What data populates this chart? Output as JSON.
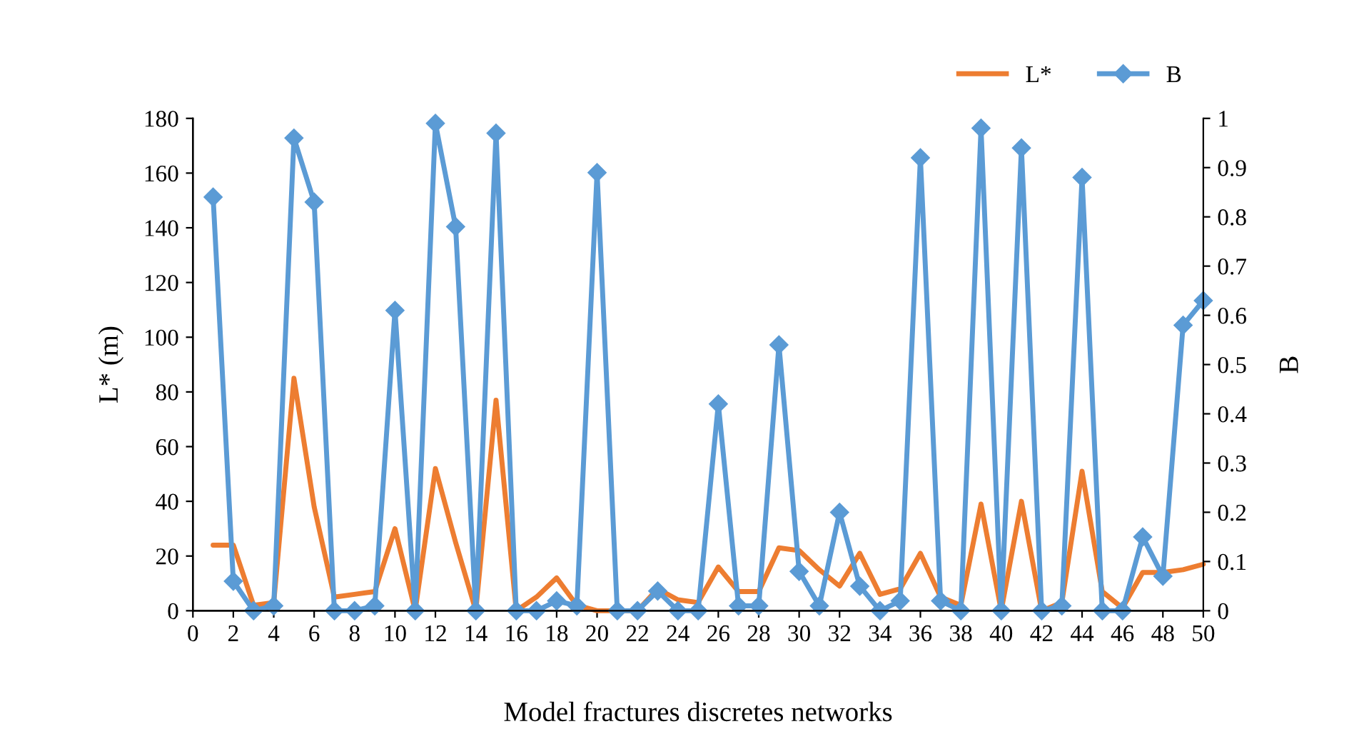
{
  "chart_data": {
    "type": "line",
    "xlabel": "Model fractures discretes networks",
    "ylabel": "L* (m)",
    "y2label": "B",
    "x": [
      1,
      2,
      3,
      4,
      5,
      6,
      7,
      8,
      9,
      10,
      11,
      12,
      13,
      14,
      15,
      16,
      17,
      18,
      19,
      20,
      21,
      22,
      23,
      24,
      25,
      26,
      27,
      28,
      29,
      30,
      31,
      32,
      33,
      34,
      35,
      36,
      37,
      38,
      39,
      40,
      41,
      42,
      43,
      44,
      45,
      46,
      47,
      48,
      49,
      50
    ],
    "series": [
      {
        "name": "L*",
        "color": "#ed7d31",
        "marker": "none",
        "values": [
          24,
          24,
          2,
          3,
          85,
          38,
          5,
          6,
          7,
          30,
          0,
          52,
          25,
          0,
          77,
          0,
          5,
          12,
          2,
          0,
          0,
          0,
          8,
          4,
          3,
          16,
          7,
          7,
          23,
          22,
          15,
          9,
          21,
          6,
          8,
          21,
          5,
          2,
          39,
          0,
          40,
          0,
          3,
          51,
          7,
          1,
          14,
          14,
          15,
          17
        ]
      },
      {
        "name": "B",
        "color": "#5b9bd5",
        "marker": "diamond",
        "axis": "y2",
        "values": [
          0.84,
          0.06,
          0.0,
          0.01,
          0.96,
          0.83,
          0.0,
          0.0,
          0.01,
          0.61,
          0.0,
          0.99,
          0.78,
          0.0,
          0.97,
          0.0,
          0.0,
          0.02,
          0.01,
          0.89,
          0.0,
          0.0,
          0.04,
          0.0,
          0.0,
          0.42,
          0.01,
          0.01,
          0.54,
          0.08,
          0.01,
          0.2,
          0.05,
          0.0,
          0.02,
          0.92,
          0.02,
          0.0,
          0.98,
          0.0,
          0.94,
          0.0,
          0.01,
          0.88,
          0.0,
          0.0,
          0.15,
          0.07,
          0.58,
          0.63
        ]
      }
    ],
    "xlim": [
      0,
      50
    ],
    "xticks": [
      0,
      2,
      4,
      6,
      8,
      10,
      12,
      14,
      16,
      18,
      20,
      22,
      24,
      26,
      28,
      30,
      32,
      34,
      36,
      38,
      40,
      42,
      44,
      46,
      48,
      50
    ],
    "ylim": [
      0,
      180
    ],
    "yticks": [
      0,
      20,
      40,
      60,
      80,
      100,
      120,
      140,
      160,
      180
    ],
    "y2lim": [
      0,
      1
    ],
    "y2ticks": [
      0,
      0.1,
      0.2,
      0.3,
      0.4,
      0.5,
      0.6,
      0.7,
      0.8,
      0.9,
      1
    ],
    "legend": "top right",
    "grid": false,
    "line_style": "solid"
  }
}
